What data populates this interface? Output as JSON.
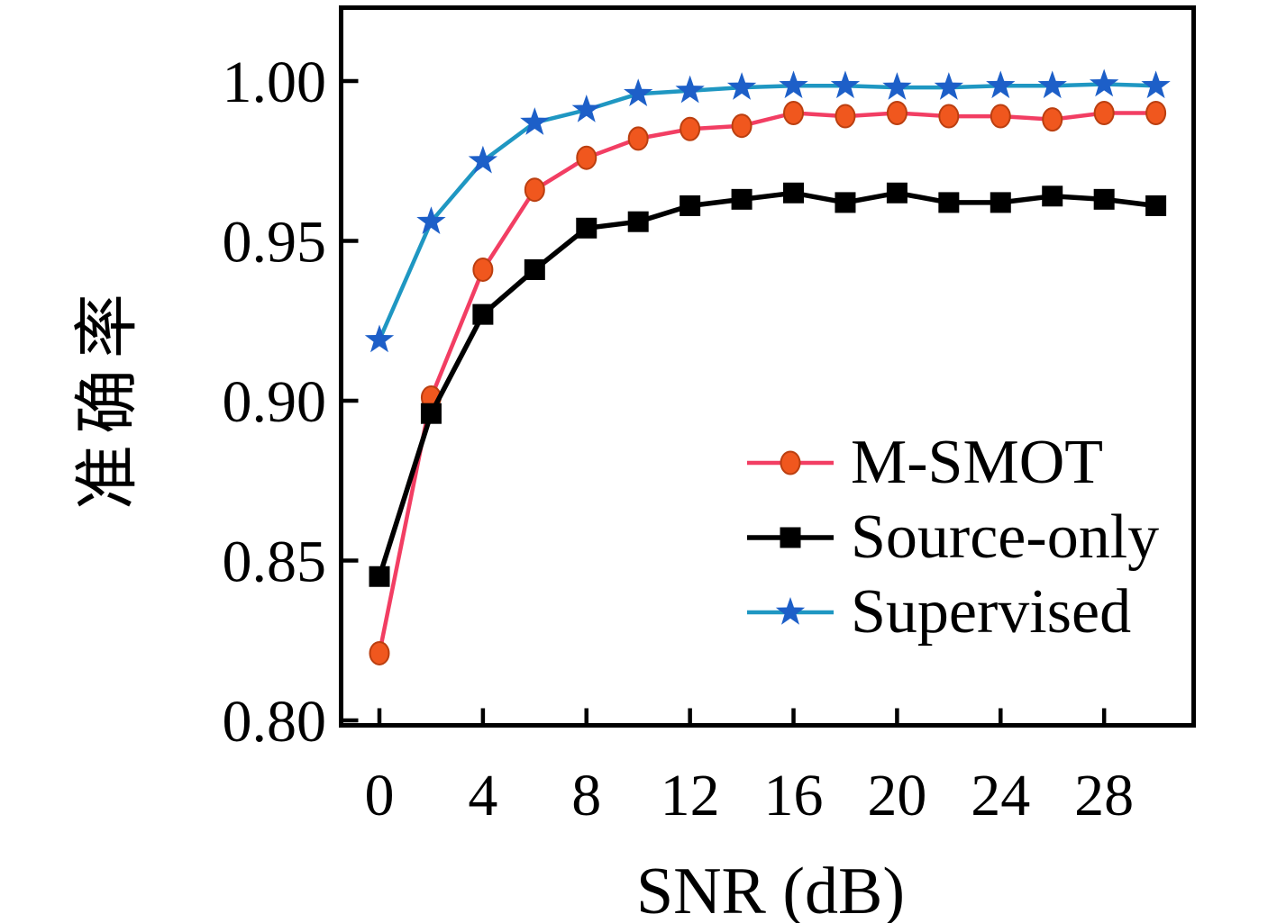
{
  "figure": {
    "background": "#ffffff",
    "axis_color": "#000000"
  },
  "chart_data": {
    "type": "line",
    "title": "",
    "xlabel": "SNR (dB)",
    "ylabel": "准确率",
    "x": [
      0,
      2,
      4,
      6,
      8,
      10,
      12,
      14,
      16,
      18,
      20,
      22,
      24,
      26,
      28,
      30
    ],
    "series": [
      {
        "name": "M-SMOT",
        "marker": "circle",
        "line_color": "#f23e63",
        "marker_color": "#f0571e",
        "marker_edge": "#bb3f10",
        "line_width": 4.5,
        "values": [
          0.821,
          0.901,
          0.941,
          0.966,
          0.976,
          0.982,
          0.985,
          0.986,
          0.99,
          0.989,
          0.99,
          0.989,
          0.989,
          0.988,
          0.99,
          0.99
        ]
      },
      {
        "name": "Source-only",
        "marker": "square",
        "line_color": "#000000",
        "marker_color": "#000000",
        "marker_edge": "none",
        "line_width": 5.5,
        "values": [
          0.845,
          0.896,
          0.927,
          0.941,
          0.954,
          0.956,
          0.961,
          0.963,
          0.965,
          0.962,
          0.965,
          0.962,
          0.962,
          0.964,
          0.963,
          0.961
        ]
      },
      {
        "name": "Supervised",
        "marker": "star",
        "line_color": "#1f97c2",
        "marker_color": "#1d5fc8",
        "marker_edge": "none",
        "line_width": 4.5,
        "values": [
          0.919,
          0.956,
          0.975,
          0.987,
          0.991,
          0.996,
          0.997,
          0.998,
          0.9985,
          0.9985,
          0.998,
          0.998,
          0.9985,
          0.9985,
          0.999,
          0.9985
        ]
      }
    ],
    "x_ticks": [
      0,
      4,
      8,
      12,
      16,
      20,
      24,
      28
    ],
    "y_ticks": [
      0.8,
      0.85,
      0.9,
      0.95,
      1.0
    ],
    "y_tick_labels": [
      "0.80",
      "0.85",
      "0.90",
      "0.95",
      "1.00"
    ],
    "xlim": [
      -1.5,
      31.5
    ],
    "ylim": [
      0.798,
      1.023
    ],
    "grid": false,
    "legend_position": "center-right"
  }
}
